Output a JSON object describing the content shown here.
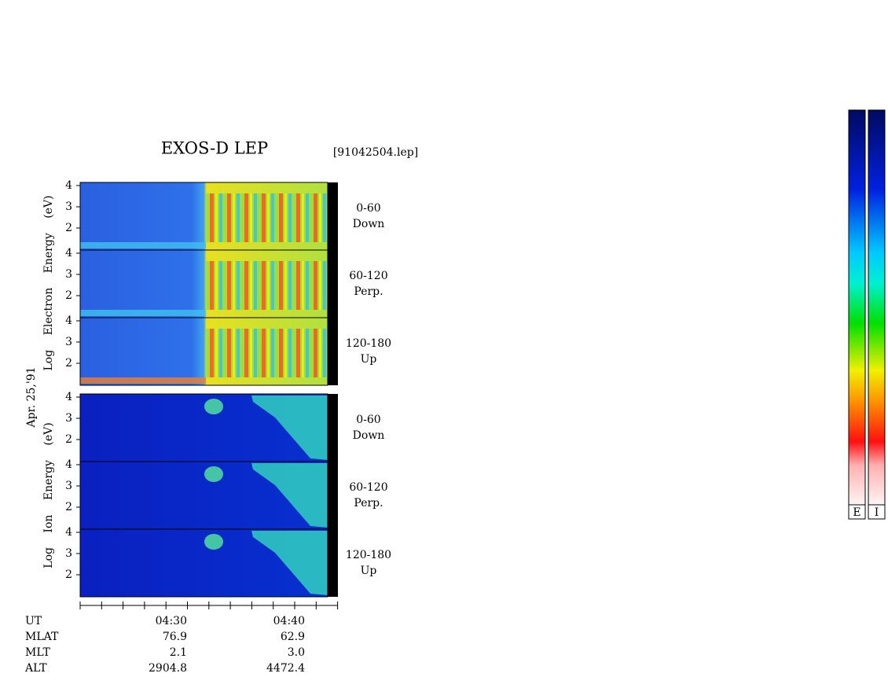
{
  "title": "EXOS-D LEP",
  "file": "[91042504.lep]",
  "date": "Apr. 25,'91",
  "electron_axis_label": "Log Electron Energy (eV)",
  "ion_axis_label": "Log Ion Energy (eV)",
  "yticks": [
    "4",
    "3",
    "2"
  ],
  "panels": [
    {
      "range": "0-60",
      "direction": "Down"
    },
    {
      "range": "60-120",
      "direction": "Perp."
    },
    {
      "range": "120-180",
      "direction": "Up"
    },
    {
      "range": "0-60",
      "direction": "Down"
    },
    {
      "range": "60-120",
      "direction": "Perp."
    },
    {
      "range": "120-180",
      "direction": "Up"
    }
  ],
  "time_axis": {
    "rows": [
      {
        "label": "UT",
        "values": [
          "04:30",
          "04:40"
        ]
      },
      {
        "label": "MLAT",
        "values": [
          "76.9",
          "62.9"
        ]
      },
      {
        "label": "MLT",
        "values": [
          "2.1",
          "3.0"
        ]
      },
      {
        "label": "ALT",
        "values": [
          "2904.8",
          "4472.4"
        ]
      }
    ]
  },
  "colorbars": [
    "E",
    "I"
  ]
}
